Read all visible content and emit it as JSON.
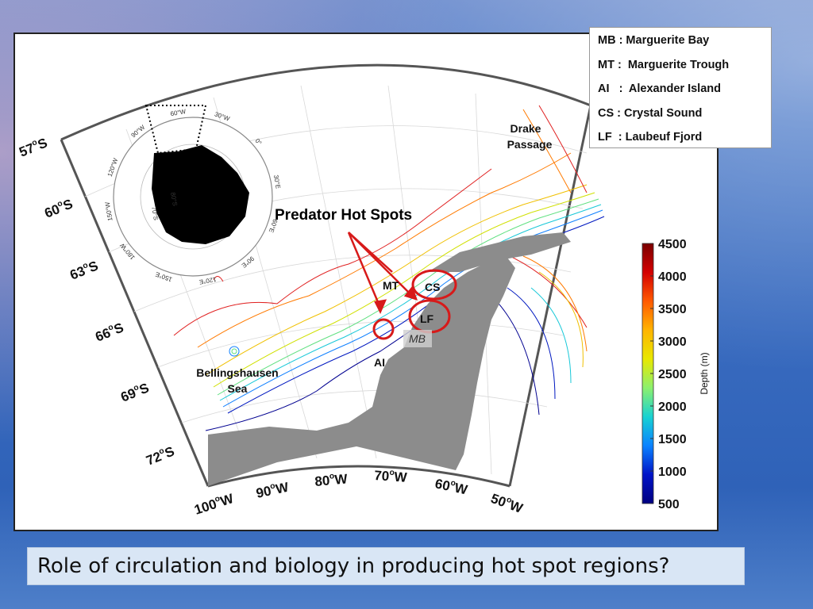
{
  "map": {
    "latitude_labels": [
      "57",
      "60",
      "63",
      "66",
      "69",
      "72"
    ],
    "longitude_labels": [
      "100",
      "90",
      "80",
      "70",
      "60",
      "50"
    ],
    "lat_suffix": "S",
    "lon_suffix": "W",
    "degree_symbol": "o",
    "title": "Predator Hot Spots",
    "place_labels": {
      "drake_line1": "Drake",
      "drake_line2": "Passage",
      "bellings_line1": "Bellingshausen",
      "bellings_line2": "Sea",
      "mt": "MT",
      "cs": "CS",
      "lf": "LF",
      "mb": "MB",
      "ai": "AI"
    },
    "hotspot_color": "#d71a1a"
  },
  "inset": {
    "rim_labels": [
      "60°W",
      "30°W",
      "0°",
      "30°E",
      "60°E",
      "90°E",
      "120°E",
      "150°E",
      "180°W",
      "150°W",
      "120°W",
      "90°W"
    ],
    "inner_labels": [
      "80°S",
      "70°S"
    ]
  },
  "legend": {
    "lines": [
      "MB : Marguerite Bay",
      "MT :  Marguerite Trough",
      "AI   :  Alexander Island",
      "CS : Crystal Sound",
      "LF  : Laubeuf Fjord"
    ]
  },
  "colorbar": {
    "label": "Depth (m)",
    "ticks": [
      "4500",
      "4000",
      "3500",
      "3000",
      "2500",
      "2000",
      "1500",
      "1000",
      "500"
    ],
    "colors": [
      "#7a0000",
      "#d40000",
      "#ff5a00",
      "#ffb400",
      "#e8e800",
      "#8cf06e",
      "#18d2d2",
      "#0a82ff",
      "#0014c8",
      "#000080"
    ]
  },
  "caption": "Role of circulation and biology in producing hot spot regions?"
}
